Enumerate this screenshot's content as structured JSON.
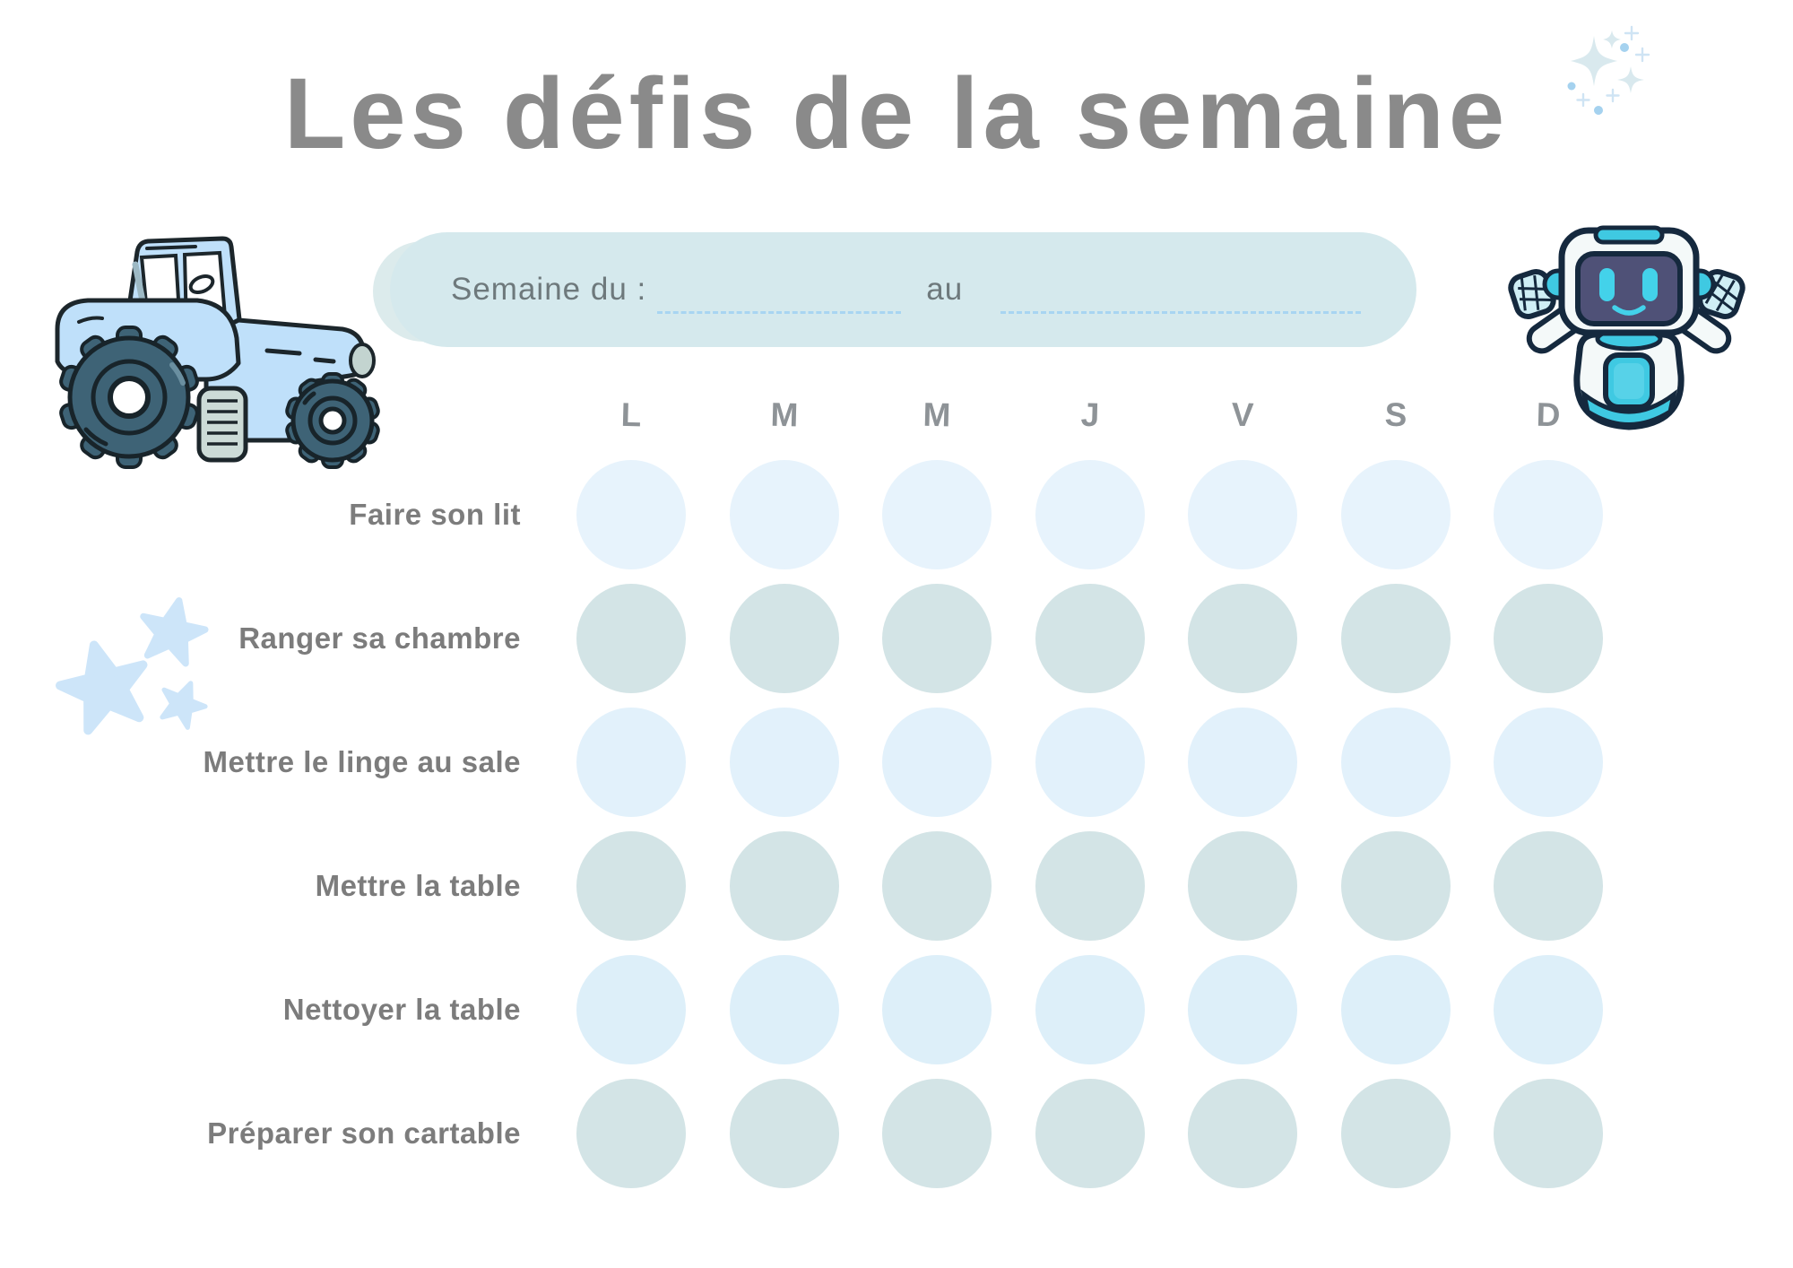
{
  "title": "Les défis de la semaine",
  "banner": {
    "from_label": "Semaine du :",
    "to_label": "au",
    "from_value": "",
    "to_value": ""
  },
  "days": [
    "L",
    "M",
    "M",
    "J",
    "V",
    "S",
    "D"
  ],
  "tasks": [
    "Faire son lit",
    "Ranger sa chambre",
    "Mettre le linge au sale",
    "Mettre la table",
    "Nettoyer la table",
    "Préparer son cartable"
  ],
  "grid": {
    "rows": 6,
    "cols": 7,
    "row_colors": [
      "#e7f3fc",
      "#d3e4e6",
      "#e2f1fb",
      "#d3e4e6",
      "#ddeff9",
      "#d3e4e6"
    ]
  },
  "colors": {
    "title": "#8a8a8a",
    "task_label": "#7c7c7c",
    "day_label": "#8e9397",
    "banner_bg": "#d5e9ed",
    "banner_text": "#6e797c",
    "dash_line": "#a8d5f2",
    "star_blue": "#cde5f9",
    "sparkle_teal": "#d9e9ee",
    "sparkle_dot": "#a5d2ef",
    "tractor_body": "#bfe0fa",
    "tractor_wheel": "#3e6376",
    "robot_teal": "#3fc9e2",
    "robot_face": "#4f5177",
    "outline_dark": "#15293e"
  },
  "decorations": {
    "tractor": "tractor-illustration",
    "robot": "robot-illustration",
    "stars": "three-stars-decoration",
    "sparkles": "sparkle-cluster-decoration"
  }
}
